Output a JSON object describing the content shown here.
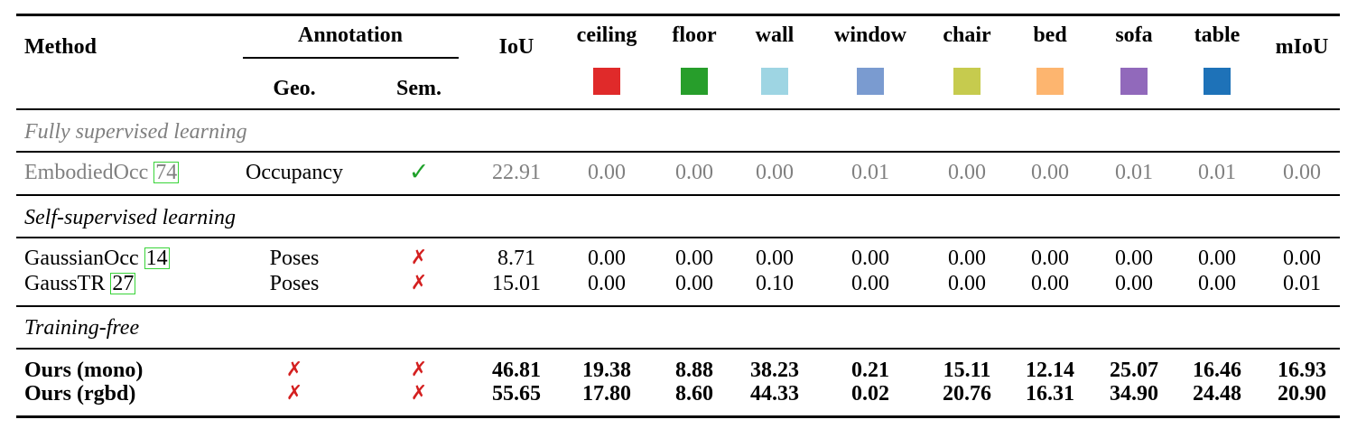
{
  "headers": {
    "method": "Method",
    "annotation": "Annotation",
    "geo": "Geo.",
    "sem": "Sem.",
    "iou": "IoU",
    "miou": "mIoU"
  },
  "classes": [
    {
      "name": "ceiling",
      "color": "#e02a2a"
    },
    {
      "name": "floor",
      "color": "#279e2b"
    },
    {
      "name": "wall",
      "color": "#9ed5e3"
    },
    {
      "name": "window",
      "color": "#7a9bd0"
    },
    {
      "name": "chair",
      "color": "#c6cb4e"
    },
    {
      "name": "bed",
      "color": "#fdb56f"
    },
    {
      "name": "sofa",
      "color": "#9169bb"
    },
    {
      "name": "table",
      "color": "#1e72b8"
    }
  ],
  "sections": [
    {
      "title": "Fully supervised learning",
      "rows": [
        {
          "method": "EmbodiedOcc",
          "ref": "74",
          "geo": "Occupancy",
          "sem": "check",
          "values": [
            "22.91",
            "0.00",
            "0.00",
            "0.00",
            "0.01",
            "0.00",
            "0.00",
            "0.01",
            "0.01",
            "0.00"
          ]
        }
      ]
    },
    {
      "title": "Self-supervised learning",
      "rows": [
        {
          "method": "GaussianOcc",
          "ref": "14",
          "geo": "Poses",
          "sem": "cross",
          "values": [
            "8.71",
            "0.00",
            "0.00",
            "0.00",
            "0.00",
            "0.00",
            "0.00",
            "0.00",
            "0.00",
            "0.00"
          ]
        },
        {
          "method": "GaussTR",
          "ref": "27",
          "geo": "Poses",
          "sem": "cross",
          "values": [
            "15.01",
            "0.00",
            "0.00",
            "0.10",
            "0.00",
            "0.00",
            "0.00",
            "0.00",
            "0.00",
            "0.01"
          ]
        }
      ]
    },
    {
      "title": "Training-free",
      "rows": [
        {
          "method": "Ours (mono)",
          "ref": "",
          "geo": "cross",
          "sem": "cross",
          "values": [
            "46.81",
            "19.38",
            "8.88",
            "38.23",
            "0.21",
            "15.11",
            "12.14",
            "25.07",
            "16.46",
            "16.93"
          ]
        },
        {
          "method": "Ours (rgbd)",
          "ref": "",
          "geo": "cross",
          "sem": "cross",
          "values": [
            "55.65",
            "17.80",
            "8.60",
            "44.33",
            "0.02",
            "20.76",
            "16.31",
            "34.90",
            "24.48",
            "20.90"
          ]
        }
      ]
    }
  ],
  "marks": {
    "check": "✓",
    "cross": "✗"
  }
}
